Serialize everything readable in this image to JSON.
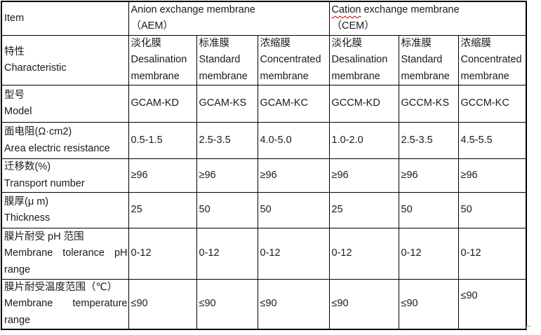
{
  "colors": {
    "border": "#000000",
    "text": "#1a1a1a",
    "squiggle": "#c00000",
    "handle": "#8f8f8f",
    "background": "#ffffff"
  },
  "table": {
    "corner_label": "Item",
    "groups": [
      {
        "title_word": "Anion",
        "title_rest": " exchange membrane",
        "subtitle": "（AEM）"
      },
      {
        "title_word": "Cation",
        "title_rest": " exchange membrane",
        "subtitle": "（CEM）"
      }
    ],
    "characteristic": {
      "zh": "特性",
      "en": "Characteristic"
    },
    "membrane_types": [
      {
        "zh": "淡化膜",
        "en": "Desalination membrane"
      },
      {
        "zh": "标准膜",
        "en": "Standard membrane"
      },
      {
        "zh": "浓缩膜",
        "en": "Concentrated membrane"
      },
      {
        "zh": "淡化膜",
        "en": "Desalination membrane"
      },
      {
        "zh": "标准膜",
        "en": "Standard membrane"
      },
      {
        "zh": "浓缩膜",
        "en": "Concentrated membrane"
      }
    ],
    "rows": [
      {
        "id": "model",
        "zh": "型号",
        "en": "Model",
        "values": [
          "GCAM-KD",
          "GCAM-KS",
          "GCAM-KC",
          "GCCM-KD",
          "GCCM-KS",
          "GCCM-KC"
        ]
      },
      {
        "id": "area-electric-resistance",
        "zh": "面电阻(Ω·cm2)",
        "en": "Area electric resistance",
        "values": [
          "0.5-1.5",
          "2.5-3.5",
          "4.0-5.0",
          "1.0-2.0",
          "2.5-3.5",
          "4.5-5.5"
        ]
      },
      {
        "id": "transport-number",
        "zh": "迁移数(%)",
        "en": "Transport number",
        "values": [
          "≥96",
          "≥96",
          "≥96",
          "≥96",
          "≥96",
          "≥96"
        ]
      },
      {
        "id": "thickness",
        "zh": "膜厚(μ m)",
        "en": "Thickness",
        "values": [
          "25",
          "50",
          "50",
          "25",
          "50",
          "50"
        ]
      },
      {
        "id": "ph-range",
        "zh": "膜片耐受 pH 范围",
        "en": "Membrane tolerance pH range",
        "values": [
          "0-12",
          "0-12",
          "0-12",
          "0-12",
          "0-12",
          "0-12"
        ]
      },
      {
        "id": "temperature-range",
        "zh": "膜片耐受温度范围（℃）",
        "en": "Membrane temperature range",
        "values": [
          "≤90",
          "≤90",
          "≤90",
          "≤90",
          "≤90",
          "≤90"
        ]
      }
    ]
  }
}
